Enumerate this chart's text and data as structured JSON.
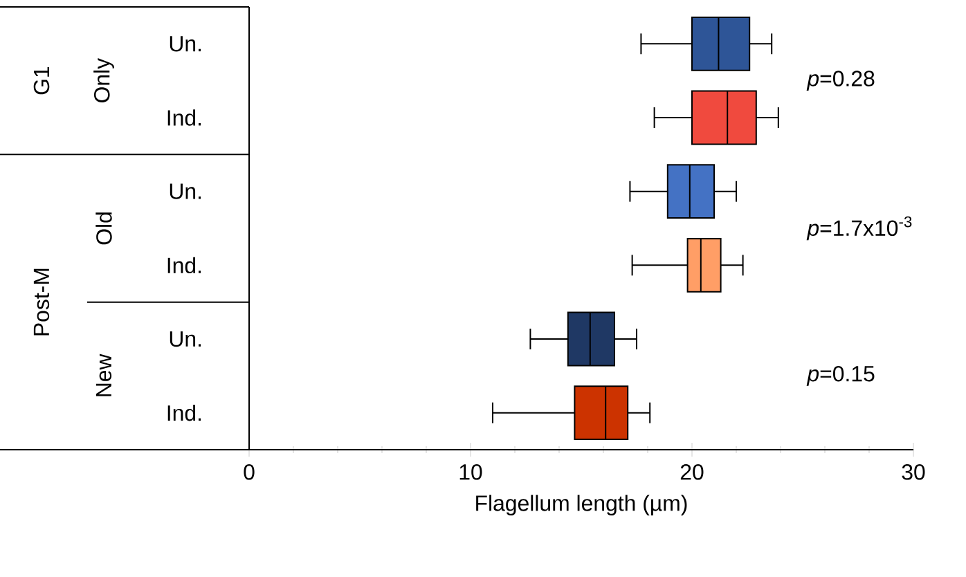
{
  "chart_data": {
    "type": "box",
    "orientation": "horizontal",
    "categories": [
      "Un.",
      "Ind.",
      "Un.",
      "Ind.",
      "Un.",
      "Ind."
    ],
    "boxes": [
      {
        "low": 17.7,
        "q1": 20.0,
        "median": 21.2,
        "q3": 22.6,
        "high": 23.6
      },
      {
        "low": 18.3,
        "q1": 20.0,
        "median": 21.6,
        "q3": 22.9,
        "high": 23.9
      },
      {
        "low": 17.2,
        "q1": 18.9,
        "median": 19.9,
        "q3": 21.0,
        "high": 22.0
      },
      {
        "low": 17.3,
        "q1": 19.8,
        "median": 20.4,
        "q3": 21.3,
        "high": 22.3
      },
      {
        "low": 12.7,
        "q1": 14.4,
        "median": 15.4,
        "q3": 16.5,
        "high": 17.5
      },
      {
        "low": 11.0,
        "q1": 14.7,
        "median": 16.1,
        "q3": 17.1,
        "high": 18.1
      }
    ],
    "colors": [
      "#2e5597",
      "#f04a3e",
      "#4472c4",
      "#ff9e66",
      "#1f3864",
      "#cc3300"
    ],
    "xlim": [
      0,
      30
    ],
    "xticks": [
      0,
      10,
      20,
      30
    ],
    "xlabel": "Flagellum length (µm)",
    "annotations": [
      "G1",
      "Only",
      "Post-M",
      "Old",
      "New",
      "*p*=0.28",
      "*p*=1.7x10$^{-3}$",
      "*p*=0.15"
    ]
  }
}
